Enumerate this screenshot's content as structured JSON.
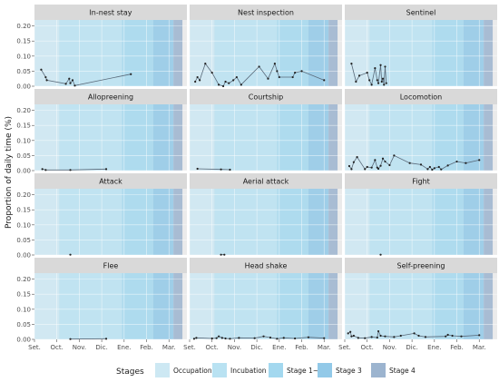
{
  "chart_data": {
    "type": "line",
    "ylabel": "Proportion of daily time (%)",
    "xlabel": "",
    "y_ticks": [
      "0.00",
      "0.05",
      "0.10",
      "0.15",
      "0.20"
    ],
    "ylim": [
      0,
      0.22
    ],
    "x_ticks": [
      "Set.",
      "Oct.",
      "Nov.",
      "Dic.",
      "Ene.",
      "Feb.",
      "Mar."
    ],
    "x_range_months": [
      0,
      6.8
    ],
    "legend": {
      "title": "Stages",
      "placement": "bottom",
      "items": [
        {
          "label": "Occupation",
          "color": "#cde8f3"
        },
        {
          "label": "Incubation",
          "color": "#b9e2f2"
        },
        {
          "label": "Stage 1~2",
          "color": "#a3d8ef"
        },
        {
          "label": "Stage 3",
          "color": "#92c9e8"
        },
        {
          "label": "Stage 4",
          "color": "#9cb4cf"
        }
      ]
    },
    "stage_bands_months": [
      {
        "stage": "Occupation",
        "from": 0,
        "to": 1.1
      },
      {
        "stage": "Incubation",
        "from": 1.1,
        "to": 3.9
      },
      {
        "stage": "Stage 1~2",
        "from": 3.9,
        "to": 5.3
      },
      {
        "stage": "Stage 3",
        "from": 5.3,
        "to": 6.2
      },
      {
        "stage": "Stage 4",
        "from": 6.2,
        "to": 6.6
      }
    ],
    "panels": [
      {
        "title": "In-nest stay",
        "points": [
          [
            0.3,
            0.055
          ],
          [
            0.5,
            0.03
          ],
          [
            0.55,
            0.02
          ],
          [
            1.4,
            0.008
          ],
          [
            1.55,
            0.025
          ],
          [
            1.6,
            0.01
          ],
          [
            1.7,
            0.02
          ],
          [
            1.8,
            0.002
          ],
          [
            4.3,
            0.04
          ]
        ]
      },
      {
        "title": "Nest inspection",
        "points": [
          [
            0.25,
            0.015
          ],
          [
            0.35,
            0.03
          ],
          [
            0.45,
            0.02
          ],
          [
            0.7,
            0.075
          ],
          [
            1.0,
            0.045
          ],
          [
            1.3,
            0.005
          ],
          [
            1.5,
            0.0
          ],
          [
            1.6,
            0.015
          ],
          [
            1.75,
            0.01
          ],
          [
            1.95,
            0.02
          ],
          [
            2.1,
            0.03
          ],
          [
            2.3,
            0.005
          ],
          [
            3.1,
            0.065
          ],
          [
            3.5,
            0.025
          ],
          [
            3.8,
            0.075
          ],
          [
            3.9,
            0.05
          ],
          [
            4.0,
            0.03
          ],
          [
            4.6,
            0.03
          ],
          [
            4.7,
            0.045
          ],
          [
            5.0,
            0.05
          ],
          [
            6.0,
            0.02
          ]
        ]
      },
      {
        "title": "Sentinel",
        "points": [
          [
            0.3,
            0.075
          ],
          [
            0.5,
            0.015
          ],
          [
            0.65,
            0.035
          ],
          [
            1.0,
            0.045
          ],
          [
            1.1,
            0.02
          ],
          [
            1.2,
            0.005
          ],
          [
            1.35,
            0.06
          ],
          [
            1.45,
            0.02
          ],
          [
            1.5,
            0.01
          ],
          [
            1.6,
            0.07
          ],
          [
            1.65,
            0.015
          ],
          [
            1.7,
            0.025
          ],
          [
            1.75,
            0.005
          ],
          [
            1.8,
            0.065
          ],
          [
            1.85,
            0.01
          ]
        ]
      },
      {
        "title": "Allopreening",
        "points": [
          [
            0.35,
            0.005
          ],
          [
            0.5,
            0.002
          ],
          [
            1.6,
            0.002
          ],
          [
            3.2,
            0.005
          ]
        ]
      },
      {
        "title": "Courtship",
        "points": [
          [
            0.35,
            0.006
          ],
          [
            1.4,
            0.004
          ],
          [
            1.8,
            0.003
          ]
        ]
      },
      {
        "title": "Locomotion",
        "points": [
          [
            0.2,
            0.015
          ],
          [
            0.3,
            0.005
          ],
          [
            0.4,
            0.028
          ],
          [
            0.55,
            0.045
          ],
          [
            0.9,
            0.005
          ],
          [
            1.0,
            0.012
          ],
          [
            1.2,
            0.01
          ],
          [
            1.35,
            0.035
          ],
          [
            1.45,
            0.01
          ],
          [
            1.5,
            0.006
          ],
          [
            1.6,
            0.016
          ],
          [
            1.7,
            0.04
          ],
          [
            1.8,
            0.03
          ],
          [
            2.0,
            0.018
          ],
          [
            2.2,
            0.05
          ],
          [
            2.9,
            0.025
          ],
          [
            3.4,
            0.02
          ],
          [
            3.7,
            0.005
          ],
          [
            3.8,
            0.012
          ],
          [
            3.9,
            0.003
          ],
          [
            4.0,
            0.008
          ],
          [
            4.2,
            0.012
          ],
          [
            4.3,
            0.004
          ],
          [
            4.6,
            0.017
          ],
          [
            5.0,
            0.03
          ],
          [
            5.4,
            0.025
          ],
          [
            6.0,
            0.035
          ]
        ]
      },
      {
        "title": "Attack",
        "points": [
          [
            1.6,
            0.001
          ]
        ]
      },
      {
        "title": "Aerial attack",
        "points": [
          [
            1.4,
            0.001
          ],
          [
            1.55,
            0.001
          ]
        ]
      },
      {
        "title": "Fight",
        "points": [
          [
            1.6,
            0.001
          ]
        ]
      },
      {
        "title": "Flee",
        "points": [
          [
            1.6,
            0.001
          ],
          [
            3.2,
            0.002
          ]
        ]
      },
      {
        "title": "Head shake",
        "points": [
          [
            0.2,
            0.002
          ],
          [
            0.3,
            0.005
          ],
          [
            1.0,
            0.003
          ],
          [
            1.2,
            0.004
          ],
          [
            1.3,
            0.01
          ],
          [
            1.45,
            0.005
          ],
          [
            1.6,
            0.003
          ],
          [
            1.8,
            0.002
          ],
          [
            2.2,
            0.005
          ],
          [
            2.9,
            0.004
          ],
          [
            3.3,
            0.01
          ],
          [
            3.6,
            0.006
          ],
          [
            3.9,
            0.002
          ],
          [
            4.2,
            0.005
          ],
          [
            4.7,
            0.003
          ],
          [
            5.3,
            0.007
          ],
          [
            6.0,
            0.004
          ]
        ]
      },
      {
        "title": "Self-preening",
        "points": [
          [
            0.15,
            0.02
          ],
          [
            0.25,
            0.025
          ],
          [
            0.3,
            0.01
          ],
          [
            0.4,
            0.012
          ],
          [
            0.6,
            0.005
          ],
          [
            0.9,
            0.004
          ],
          [
            1.2,
            0.008
          ],
          [
            1.45,
            0.006
          ],
          [
            1.5,
            0.027
          ],
          [
            1.6,
            0.012
          ],
          [
            1.8,
            0.01
          ],
          [
            2.2,
            0.008
          ],
          [
            2.5,
            0.012
          ],
          [
            3.1,
            0.02
          ],
          [
            3.3,
            0.012
          ],
          [
            3.6,
            0.008
          ],
          [
            4.5,
            0.01
          ],
          [
            4.6,
            0.015
          ],
          [
            4.8,
            0.012
          ],
          [
            5.2,
            0.01
          ],
          [
            6.0,
            0.014
          ]
        ]
      }
    ]
  }
}
